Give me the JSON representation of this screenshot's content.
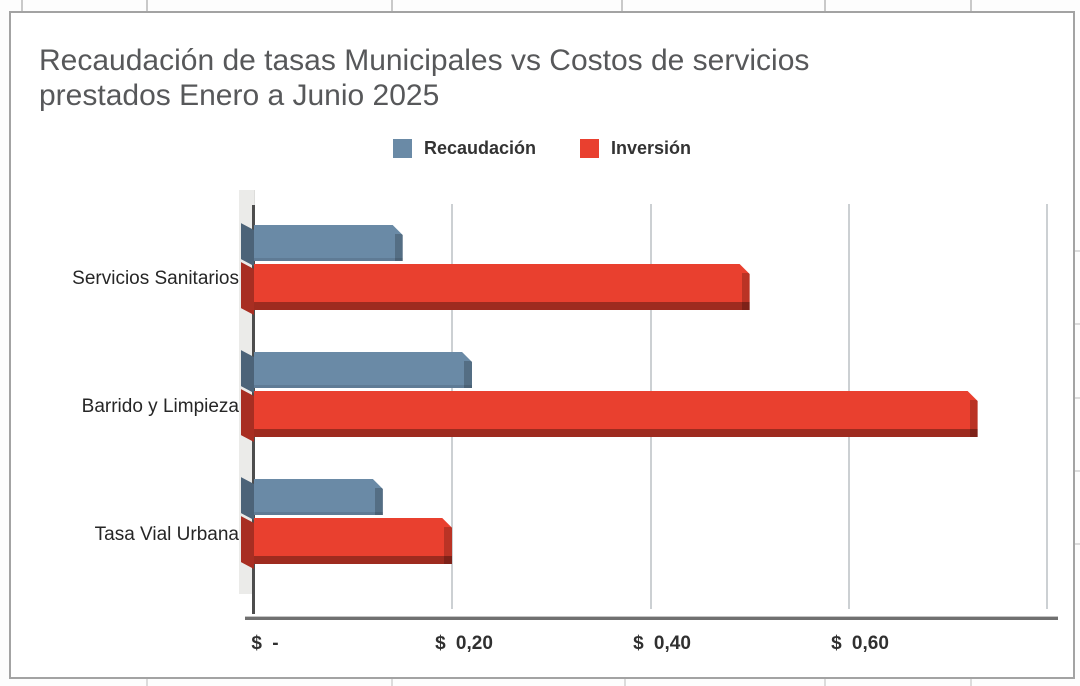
{
  "chart_data": {
    "type": "bar",
    "orientation": "horizontal",
    "title": "Recaudación de tasas Municipales vs Costos de servicios prestados Enero a Junio 2025",
    "title_lines": [
      "Recaudación de tasas Municipales vs Costos de servicios",
      "prestados Enero a Junio 2025"
    ],
    "categories": [
      "Servicios Sanitarios",
      "Barrido y Limpieza",
      "Tasa Vial Urbana"
    ],
    "series": [
      {
        "name": "Recaudación",
        "color": "#6a8aa6",
        "values": [
          0.15,
          0.22,
          0.13
        ]
      },
      {
        "name": "Inversión",
        "color": "#e9402f",
        "values": [
          0.5,
          0.73,
          0.2
        ]
      }
    ],
    "x_axis": {
      "ticks": [
        "$ -",
        "$ 0,20",
        "$ 0,40",
        "$ 0,60"
      ],
      "tick_values": [
        0,
        0.2,
        0.4,
        0.6
      ],
      "max": 0.8,
      "currency_prefix": "$",
      "decimal_separator": ","
    },
    "legend_position": "top-center",
    "grid": true,
    "style": "3d-beveled-bars"
  },
  "colors": {
    "title_text": "#57585a",
    "label_text": "#262626",
    "tick_text": "#303030",
    "recaudacion_blue": "#6a8aa6",
    "inversion_red": "#e9402f",
    "inversion_dark_edge": "#a2342a",
    "gridline": "#ccd0d3",
    "baseline": "#4d4d4d",
    "wall": "#ebebe9",
    "frame_border": "#a3a3a3",
    "background": "#ffffff"
  }
}
